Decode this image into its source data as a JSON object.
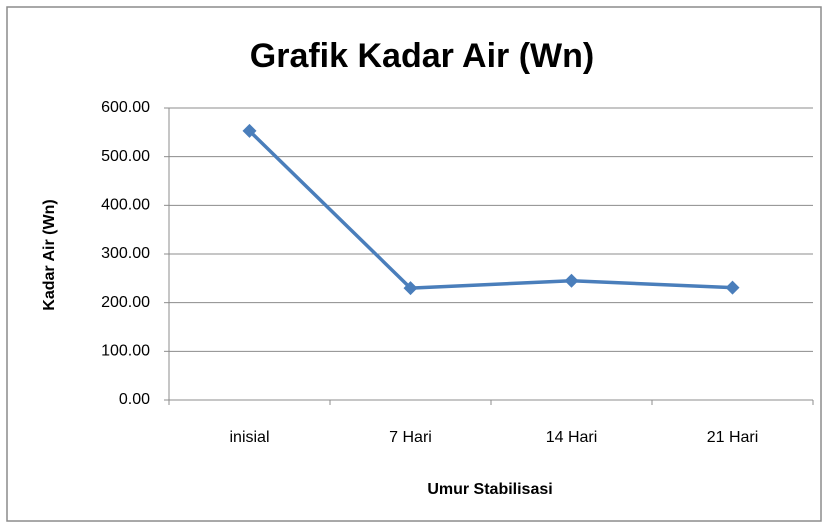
{
  "chart_data": {
    "type": "line",
    "title": "Grafik Kadar Air (Wn)",
    "x_label": "Umur Stabilisasi",
    "y_label": "Kadar Air (Wn)",
    "categories": [
      "inisial",
      "7 Hari",
      "14 Hari",
      "21 Hari"
    ],
    "series": [
      {
        "name": "Kadar Air (Wn)",
        "color": "#4a7ebb",
        "values": [
          553,
          230,
          245,
          231
        ]
      }
    ],
    "ylim": [
      0,
      600
    ],
    "yticks": [
      {
        "value": 0,
        "label": "0.00"
      },
      {
        "value": 100,
        "label": "100.00"
      },
      {
        "value": 200,
        "label": "200.00"
      },
      {
        "value": 300,
        "label": "300.00"
      },
      {
        "value": 400,
        "label": "400.00"
      },
      {
        "value": 500,
        "label": "500.00"
      },
      {
        "value": 600,
        "label": "600.00"
      }
    ],
    "grid": true
  }
}
